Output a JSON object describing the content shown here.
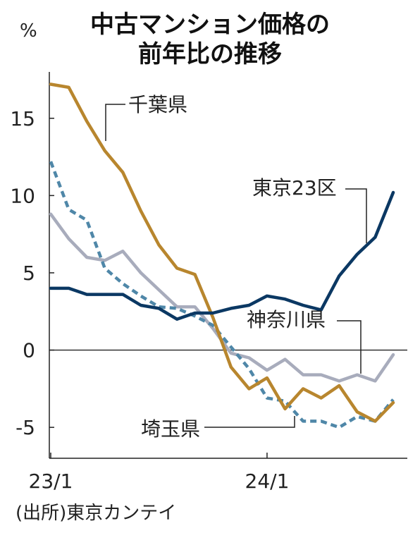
{
  "chart_data": {
    "type": "line",
    "title": "中古マンション価格の",
    "subtitle": "前年比の推移",
    "ylabel": "%",
    "xlabel": "",
    "ylim": [
      -7,
      18
    ],
    "yticks": [
      15,
      10,
      5,
      0,
      -5
    ],
    "ytick_labels": [
      "15",
      "10",
      "5",
      "0",
      "-5"
    ],
    "x_tick_labels": [
      {
        "index": 0,
        "label": "23/1"
      },
      {
        "index": 12,
        "label": "24/1"
      }
    ],
    "x_points": 20,
    "grid": false,
    "zero_line": true,
    "source": "(出所)東京カンテイ",
    "series": [
      {
        "name": "千葉県",
        "color": "#b8862e",
        "dash": "solid",
        "values": [
          17.2,
          17.0,
          14.8,
          12.9,
          11.5,
          9.0,
          6.8,
          5.3,
          4.9,
          2.1,
          -1.1,
          -2.5,
          -1.8,
          -3.8,
          -2.5,
          -3.1,
          -2.3,
          -4.0,
          -4.6,
          -3.4
        ]
      },
      {
        "name": "東京23区",
        "color": "#0b3863",
        "dash": "solid",
        "values": [
          4.0,
          4.0,
          3.6,
          3.6,
          3.6,
          2.9,
          2.7,
          2.0,
          2.4,
          2.4,
          2.7,
          2.9,
          3.5,
          3.3,
          2.9,
          2.6,
          4.8,
          6.2,
          7.3,
          10.2
        ]
      },
      {
        "name": "神奈川県",
        "color": "#a8acbc",
        "dash": "solid",
        "values": [
          8.8,
          7.2,
          6.0,
          5.8,
          6.4,
          5.0,
          3.9,
          2.8,
          2.8,
          1.4,
          -0.2,
          -0.5,
          -1.3,
          -0.6,
          -1.6,
          -1.6,
          -2.0,
          -1.6,
          -2.0,
          -0.3
        ]
      },
      {
        "name": "埼玉県",
        "color": "#4f87a8",
        "dash": "dashed",
        "values": [
          12.2,
          9.1,
          8.4,
          5.3,
          4.3,
          3.5,
          2.8,
          2.7,
          2.2,
          1.6,
          0.2,
          -1.2,
          -3.1,
          -3.3,
          -4.6,
          -4.6,
          -5.0,
          -4.3,
          -4.6,
          -3.2
        ]
      }
    ]
  }
}
